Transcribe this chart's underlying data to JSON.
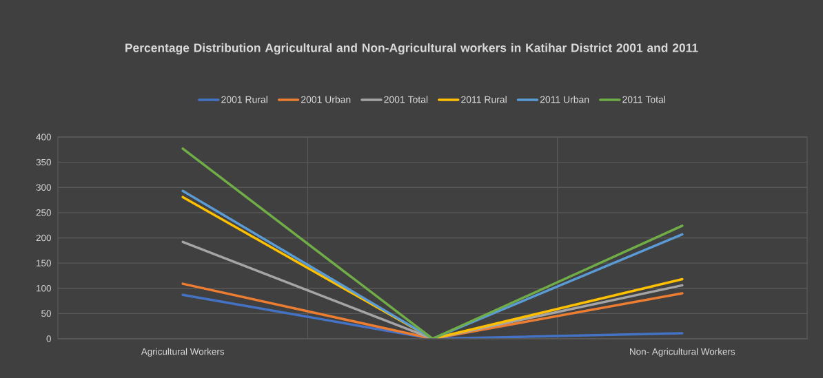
{
  "chart_data": {
    "type": "line",
    "title": "Percentage Distribution Agricultural and Non-Agricultural workers in Katihar District 2001 and 2011",
    "categories": [
      "Agricultural Workers",
      null,
      "Non- Agricultural Workers"
    ],
    "series": [
      {
        "name": "2001 Rural",
        "color": "#4472c4",
        "values": [
          87,
          0,
          11
        ]
      },
      {
        "name": "2001 Urban",
        "color": "#ed7d31",
        "values": [
          109,
          0,
          90
        ]
      },
      {
        "name": "2001 Total",
        "color": "#a5a5a5",
        "values": [
          192,
          0,
          106
        ]
      },
      {
        "name": "2011 Rural",
        "color": "#ffc000",
        "values": [
          281,
          0,
          118
        ]
      },
      {
        "name": "2011 Urban",
        "color": "#5b9bd5",
        "values": [
          293,
          0,
          207
        ]
      },
      {
        "name": "2011 Total",
        "color": "#70ad47",
        "values": [
          377,
          0,
          224
        ]
      }
    ],
    "ylim": [
      0,
      400
    ],
    "yticks": [
      0,
      50,
      100,
      150,
      200,
      250,
      300,
      350,
      400
    ],
    "grid": true,
    "legend": "top",
    "marker": "none",
    "line_style": "solid"
  }
}
